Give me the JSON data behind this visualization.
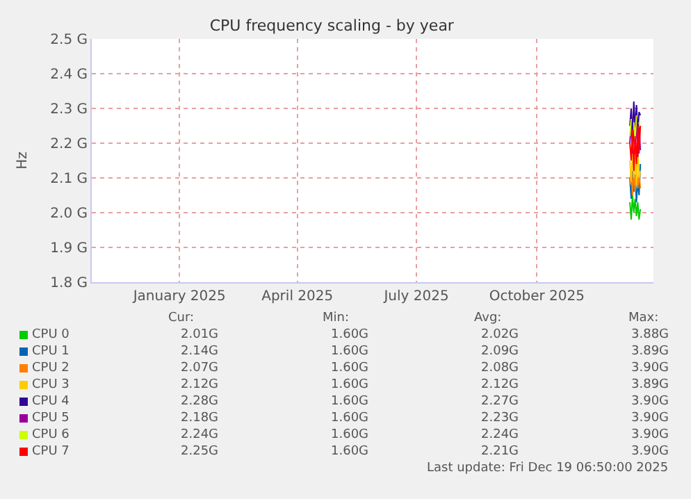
{
  "chart_data": {
    "type": "line",
    "title": "CPU frequency scaling - by year",
    "ylabel": "Hz",
    "x": [
      "2025-12-11",
      "2025-12-12",
      "2025-12-13",
      "2025-12-14",
      "2025-12-15",
      "2025-12-16",
      "2025-12-17",
      "2025-12-18",
      "2025-12-19"
    ],
    "series": [
      {
        "name": "CPU 0",
        "color": "#00cc00",
        "values": [
          2.03,
          1.98,
          2.05,
          2.0,
          2.04,
          1.99,
          2.03,
          1.98,
          2.01
        ]
      },
      {
        "name": "CPU 1",
        "color": "#0066b3",
        "values": [
          2.1,
          2.04,
          2.12,
          2.06,
          2.11,
          2.03,
          2.09,
          2.05,
          2.14
        ]
      },
      {
        "name": "CPU 2",
        "color": "#ff8000",
        "values": [
          2.08,
          2.13,
          2.05,
          2.12,
          2.06,
          2.14,
          2.07,
          2.11,
          2.07
        ]
      },
      {
        "name": "CPU 3",
        "color": "#ffcc00",
        "values": [
          2.15,
          2.09,
          2.18,
          2.1,
          2.16,
          2.08,
          2.19,
          2.1,
          2.12
        ]
      },
      {
        "name": "CPU 4",
        "color": "#330099",
        "values": [
          2.25,
          2.3,
          2.22,
          2.32,
          2.24,
          2.31,
          2.23,
          2.29,
          2.28
        ]
      },
      {
        "name": "CPU 5",
        "color": "#990099",
        "values": [
          2.2,
          2.26,
          2.17,
          2.24,
          2.19,
          2.27,
          2.16,
          2.25,
          2.18
        ]
      },
      {
        "name": "CPU 6",
        "color": "#ccff00",
        "values": [
          2.22,
          2.27,
          null,
          2.26,
          2.21,
          2.28,
          null,
          2.26,
          2.24
        ]
      },
      {
        "name": "CPU 7",
        "color": "#ff0000",
        "values": [
          2.2,
          2.15,
          2.24,
          2.12,
          2.22,
          2.14,
          2.25,
          2.17,
          2.25
        ]
      }
    ],
    "xlim": [
      "2024-10-26",
      "2025-12-29"
    ],
    "xticks": [
      {
        "value": "2025-01-01",
        "label": "January 2025"
      },
      {
        "value": "2025-04-01",
        "label": "April 2025"
      },
      {
        "value": "2025-07-01",
        "label": "July 2025"
      },
      {
        "value": "2025-10-01",
        "label": "October 2025"
      }
    ],
    "ylim": [
      1.8,
      2.5
    ],
    "yticks": [
      {
        "value": 1.8,
        "label": "1.8 G"
      },
      {
        "value": 1.9,
        "label": "1.9 G"
      },
      {
        "value": 2.0,
        "label": "2.0 G"
      },
      {
        "value": 2.1,
        "label": "2.1 G"
      },
      {
        "value": 2.2,
        "label": "2.2 G"
      },
      {
        "value": 2.3,
        "label": "2.3 G"
      },
      {
        "value": 2.4,
        "label": "2.4 G"
      },
      {
        "value": 2.5,
        "label": "2.5 G"
      }
    ],
    "grid": true,
    "legend": "bottom left",
    "marker": "none",
    "line_style": "solid",
    "annotations": [
      "Cur:",
      "Min:",
      "Avg:",
      "Max:",
      "2.01G",
      "1.60G",
      "2.02G",
      "3.88G",
      "2.14G",
      "1.60G",
      "2.09G",
      "3.89G",
      "2.07G",
      "1.60G",
      "2.08G",
      "3.90G",
      "2.12G",
      "1.60G",
      "2.12G",
      "3.89G",
      "2.28G",
      "1.60G",
      "2.27G",
      "3.90G",
      "2.18G",
      "1.60G",
      "2.23G",
      "3.90G",
      "2.24G",
      "1.60G",
      "2.24G",
      "3.90G",
      "2.25G",
      "1.60G",
      "2.21G",
      "3.90G",
      "Last update: Fri Dec 19 06:50:00 2025"
    ]
  }
}
